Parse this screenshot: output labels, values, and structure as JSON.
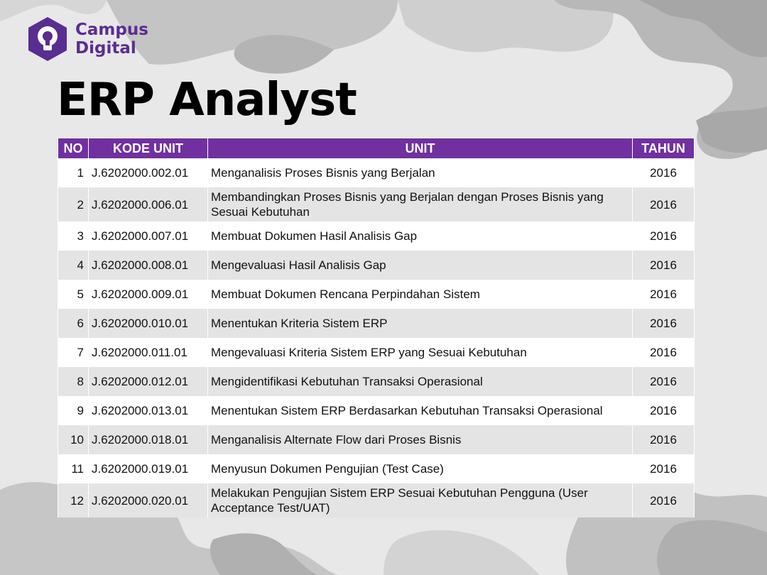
{
  "logo": {
    "line1": "Campus",
    "line2": "Digital",
    "icon": "lightbulb-hexagon-icon",
    "color": "#5a2d91"
  },
  "title": "ERP Analyst",
  "table": {
    "header_color": "#7030a0",
    "columns": [
      "NO",
      "KODE UNIT",
      "UNIT",
      "TAHUN"
    ],
    "rows": [
      {
        "no": "1",
        "kode": "J.6202000.002.01",
        "unit": "Menganalisis Proses Bisnis yang Berjalan",
        "tahun": "2016"
      },
      {
        "no": "2",
        "kode": "J.6202000.006.01",
        "unit": "Membandingkan Proses Bisnis yang Berjalan dengan Proses Bisnis yang Sesuai Kebutuhan",
        "tahun": "2016"
      },
      {
        "no": "3",
        "kode": "J.6202000.007.01",
        "unit": "Membuat Dokumen Hasil Analisis Gap",
        "tahun": "2016"
      },
      {
        "no": "4",
        "kode": "J.6202000.008.01",
        "unit": "Mengevaluasi Hasil Analisis Gap",
        "tahun": "2016"
      },
      {
        "no": "5",
        "kode": "J.6202000.009.01",
        "unit": "Membuat Dokumen Rencana Perpindahan Sistem",
        "tahun": "2016"
      },
      {
        "no": "6",
        "kode": "J.6202000.010.01",
        "unit": "Menentukan Kriteria Sistem ERP",
        "tahun": "2016"
      },
      {
        "no": "7",
        "kode": "J.6202000.011.01",
        "unit": "Mengevaluasi Kriteria Sistem ERP yang Sesuai Kebutuhan",
        "tahun": "2016"
      },
      {
        "no": "8",
        "kode": "J.6202000.012.01",
        "unit": "Mengidentifikasi Kebutuhan Transaksi Operasional",
        "tahun": "2016"
      },
      {
        "no": "9",
        "kode": "J.6202000.013.01",
        "unit": "Menentukan Sistem ERP Berdasarkan Kebutuhan Transaksi Operasional",
        "tahun": "2016"
      },
      {
        "no": "10",
        "kode": "J.6202000.018.01",
        "unit": "Menganalisis Alternate Flow dari Proses Bisnis",
        "tahun": "2016"
      },
      {
        "no": "11",
        "kode": "J.6202000.019.01",
        "unit": "Menyusun Dokumen Pengujian (Test Case)",
        "tahun": "2016"
      },
      {
        "no": "12",
        "kode": "J.6202000.020.01",
        "unit": "Melakukan Pengujian Sistem ERP Sesuai Kebutuhan Pengguna (User Acceptance Test/UAT)",
        "tahun": "2016"
      }
    ]
  }
}
